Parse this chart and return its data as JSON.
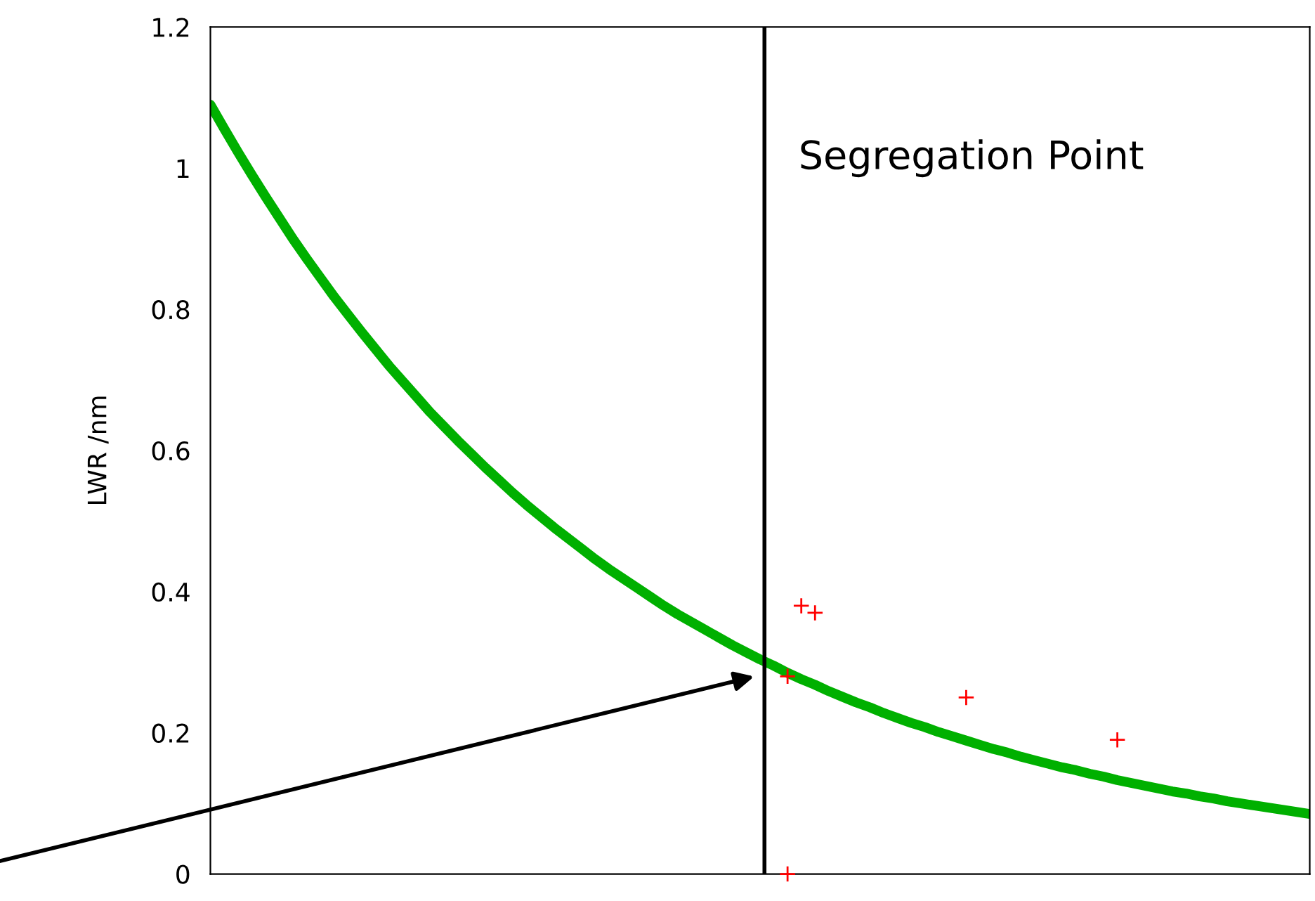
{
  "chart_data": {
    "type": "line",
    "ylabel": "LWR /nm",
    "ylim": [
      0,
      1.2
    ],
    "yticks": [
      0,
      0.2,
      0.4,
      0.6,
      0.8,
      1,
      1.2
    ],
    "tick_labels": "y",
    "grid": false,
    "legend": false,
    "categories": [
      null,
      null,
      null,
      null,
      null,
      null,
      null,
      null,
      null,
      null,
      null,
      null,
      null,
      null,
      null,
      null,
      null,
      null,
      null,
      null,
      null,
      null,
      null,
      null,
      null,
      null,
      null,
      null,
      null,
      null,
      null,
      null,
      null,
      null,
      null,
      null,
      null,
      null,
      null,
      null,
      null,
      null,
      null,
      null,
      null,
      null,
      null,
      null,
      null,
      null,
      null,
      null,
      null,
      null,
      null,
      null,
      null,
      null,
      null,
      null,
      null,
      null,
      null,
      null,
      null,
      null,
      null,
      null,
      null,
      null,
      null,
      null,
      null,
      null,
      null,
      null,
      null,
      null,
      null,
      null,
      null
    ],
    "series": [
      {
        "color": "#00b000",
        "marker": "none",
        "values": [
          1.09,
          1.056,
          1.023,
          0.991,
          0.96,
          0.93,
          0.9,
          0.872,
          0.845,
          0.818,
          0.793,
          0.768,
          0.744,
          0.72,
          0.698,
          0.676,
          0.654,
          0.634,
          0.614,
          0.595,
          0.576,
          0.558,
          0.54,
          0.523,
          0.507,
          0.491,
          0.476,
          0.461,
          0.446,
          0.432,
          0.419,
          0.406,
          0.393,
          0.38,
          0.368,
          0.357,
          0.346,
          0.335,
          0.324,
          0.314,
          0.304,
          0.295,
          0.285,
          0.276,
          0.268,
          0.259,
          0.251,
          0.243,
          0.236,
          0.228,
          0.221,
          0.214,
          0.208,
          0.201,
          0.195,
          0.189,
          0.183,
          0.177,
          0.172,
          0.166,
          0.161,
          0.156,
          0.151,
          0.147,
          0.142,
          0.138,
          0.133,
          0.129,
          0.125,
          0.121,
          0.117,
          0.114,
          0.11,
          0.107,
          0.103,
          0.1,
          0.097,
          0.094,
          0.091,
          0.088,
          0.085
        ]
      },
      {
        "type": "scatter",
        "color": "#ff0000",
        "marker": "cross",
        "values": [
          null,
          null,
          null,
          null,
          null,
          null,
          null,
          null,
          null,
          null,
          null,
          null,
          null,
          null,
          null,
          null,
          null,
          null,
          null,
          null,
          null,
          null,
          null,
          null,
          null,
          null,
          null,
          null,
          null,
          null,
          null,
          null,
          null,
          null,
          null,
          null,
          null,
          null,
          null,
          null,
          null,
          null,
          0.28,
          0.38,
          0.37,
          null,
          null,
          null,
          null,
          null,
          null,
          null,
          null,
          null,
          null,
          0.25,
          null,
          null,
          null,
          null,
          null,
          null,
          null,
          null,
          null,
          null,
          0.19,
          null,
          null,
          null,
          null,
          null,
          null,
          null,
          null,
          null,
          null,
          null,
          null,
          null,
          null
        ]
      },
      {
        "type": "scatter",
        "color": "#ff0000",
        "marker": "cross",
        "values": [
          null,
          null,
          null,
          null,
          null,
          null,
          null,
          null,
          null,
          null,
          null,
          null,
          null,
          null,
          null,
          null,
          null,
          null,
          null,
          null,
          null,
          null,
          null,
          null,
          null,
          null,
          null,
          null,
          null,
          null,
          null,
          null,
          null,
          null,
          null,
          null,
          null,
          null,
          null,
          null,
          null,
          null,
          0,
          null,
          null,
          null,
          null,
          null,
          null,
          null,
          null,
          null,
          null,
          null,
          null,
          null,
          null,
          null,
          null,
          null,
          null,
          null,
          null,
          null,
          null,
          null,
          null,
          null,
          null,
          null,
          null,
          null,
          null,
          null,
          null,
          null,
          null,
          null,
          null,
          null,
          null
        ]
      }
    ],
    "annotations": [
      "Segregation Point"
    ]
  }
}
